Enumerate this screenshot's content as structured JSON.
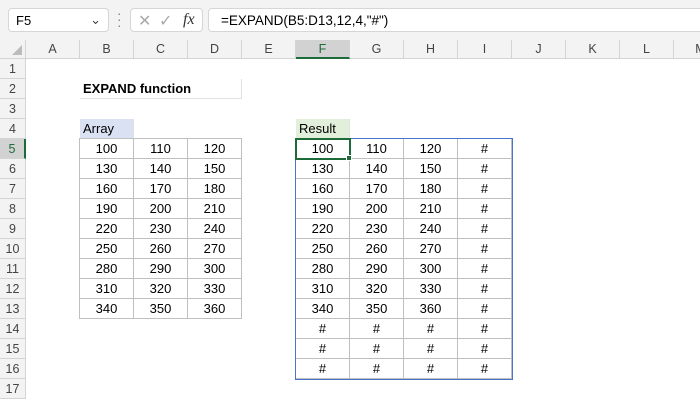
{
  "name_box": "F5",
  "formula": "=EXPAND(B5:D13,12,4,\"#\")",
  "fx_label": "fx",
  "columns": [
    "A",
    "B",
    "C",
    "D",
    "E",
    "F",
    "G",
    "H",
    "I",
    "J",
    "K",
    "L",
    "M"
  ],
  "rows": [
    "1",
    "2",
    "3",
    "4",
    "5",
    "6",
    "7",
    "8",
    "9",
    "10",
    "11",
    "12",
    "13",
    "14",
    "15",
    "16",
    "17"
  ],
  "title": "EXPAND function",
  "array_label": "Array",
  "result_label": "Result",
  "colors": {
    "array_header": "#d9e1f2",
    "result_header": "#e2efda",
    "active": "#1e6b3a",
    "spill_border": "#4a74c9"
  },
  "array": [
    [
      "100",
      "110",
      "120"
    ],
    [
      "130",
      "140",
      "150"
    ],
    [
      "160",
      "170",
      "180"
    ],
    [
      "190",
      "200",
      "210"
    ],
    [
      "220",
      "230",
      "240"
    ],
    [
      "250",
      "260",
      "270"
    ],
    [
      "280",
      "290",
      "300"
    ],
    [
      "310",
      "320",
      "330"
    ],
    [
      "340",
      "350",
      "360"
    ]
  ],
  "result": [
    [
      "100",
      "110",
      "120",
      "#"
    ],
    [
      "130",
      "140",
      "150",
      "#"
    ],
    [
      "160",
      "170",
      "180",
      "#"
    ],
    [
      "190",
      "200",
      "210",
      "#"
    ],
    [
      "220",
      "230",
      "240",
      "#"
    ],
    [
      "250",
      "260",
      "270",
      "#"
    ],
    [
      "280",
      "290",
      "300",
      "#"
    ],
    [
      "310",
      "320",
      "330",
      "#"
    ],
    [
      "340",
      "350",
      "360",
      "#"
    ],
    [
      "#",
      "#",
      "#",
      "#"
    ],
    [
      "#",
      "#",
      "#",
      "#"
    ],
    [
      "#",
      "#",
      "#",
      "#"
    ]
  ]
}
